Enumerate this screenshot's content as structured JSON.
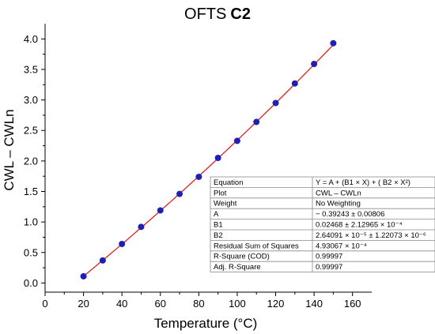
{
  "chart_data": {
    "type": "scatter",
    "title_prefix": "OFTS",
    "title_bold": "C2",
    "xlabel": "Temperature (°C)",
    "ylabel": "CWL – CWLn",
    "xlim": [
      0,
      170
    ],
    "ylim": [
      -0.15,
      4.25
    ],
    "x_ticks": [
      "0",
      "20",
      "40",
      "60",
      "80",
      "100",
      "120",
      "140",
      "160"
    ],
    "y_ticks": [
      "0.0",
      "0.5",
      "1.0",
      "1.5",
      "2.0",
      "2.5",
      "3.0",
      "3.5",
      "4.0"
    ],
    "x_tick_values": [
      0,
      20,
      40,
      60,
      80,
      100,
      120,
      140,
      160
    ],
    "y_tick_values": [
      0,
      0.5,
      1.0,
      1.5,
      2.0,
      2.5,
      3.0,
      3.5,
      4.0
    ],
    "x": [
      20,
      30,
      40,
      50,
      60,
      70,
      80,
      90,
      100,
      110,
      120,
      130,
      140,
      150
    ],
    "y": [
      0.11,
      0.37,
      0.64,
      0.92,
      1.19,
      1.46,
      1.74,
      2.05,
      2.33,
      2.64,
      2.95,
      3.27,
      3.59,
      3.93
    ],
    "fit": {
      "A": -0.39243,
      "B1": 0.02468,
      "B2": 2.64091e-05
    },
    "marker_color": "#1f1fb4",
    "fit_color": "#e02020",
    "grid": false,
    "fit_table": [
      {
        "label": "Equation",
        "value": "Y = A + (B1 × X) + ( B2 × X²)"
      },
      {
        "label": "Plot",
        "value": "CWL – CWLn"
      },
      {
        "label": "Weight",
        "value": "No Weighting"
      },
      {
        "label": "A",
        "value": "− 0.39243 ± 0.00806"
      },
      {
        "label": "B1",
        "value": "0.02468 ± 2.12965 × 10⁻⁴"
      },
      {
        "label": "B2",
        "value": "2.64091 × 10⁻⁵ ± 1.22073 × 10⁻⁶"
      },
      {
        "label": "Residual Sum of Squares",
        "value": "4.93067 × 10⁻⁴"
      },
      {
        "label": "R-Square (COD)",
        "value": "0.99997"
      },
      {
        "label": "Adj. R-Square",
        "value": "0.99997"
      }
    ]
  }
}
